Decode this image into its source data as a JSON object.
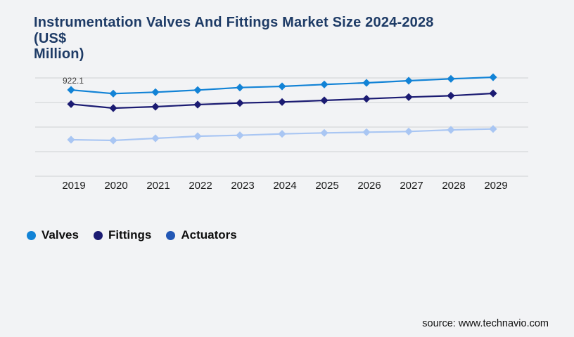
{
  "page": {
    "background_color": "#f2f3f5"
  },
  "title": {
    "line1": "Instrumentation Valves And Fittings Market Size 2024-2028",
    "line2": "(US$",
    "line3": "Million)",
    "color": "#1e3b66"
  },
  "legend": {
    "items": [
      {
        "label": "Valves",
        "dot_color": "#1283d6"
      },
      {
        "label": "Fittings",
        "dot_color": "#1b1b72"
      },
      {
        "label": "Actuators",
        "dot_color": "#2257b5"
      }
    ]
  },
  "source": {
    "label": "source: www.technavio.com"
  },
  "chart_data": {
    "type": "line",
    "title": "Instrumentation Valves And Fittings Market Size 2024-2028 (US$ Million)",
    "xlabel": "",
    "ylabel": "US$ Million",
    "x": [
      2019,
      2020,
      2021,
      2022,
      2023,
      2024,
      2025,
      2026,
      2027,
      2028,
      2029
    ],
    "series": [
      {
        "name": "Valves",
        "color": "#1283d6",
        "marker": "diamond",
        "values": [
          922.1,
          882.8,
          897.8,
          920.3,
          947.3,
          960.0,
          980.3,
          997.5,
          1020.0,
          1040.3,
          1057.5
        ]
      },
      {
        "name": "Fittings",
        "color": "#1b1b72",
        "marker": "diamond",
        "values": [
          770.3,
          727.5,
          742.5,
          765.0,
          782.3,
          792.8,
          810.0,
          827.3,
          845.3,
          860.3,
          885.0
        ]
      },
      {
        "name": "Actuators",
        "color": "#a9c6f3",
        "marker": "diamond",
        "values": [
          390.0,
          382.5,
          405.0,
          427.5,
          437.3,
          452.3,
          462.8,
          470.3,
          477.8,
          495.0,
          504.8
        ]
      }
    ],
    "data_labels": [
      {
        "series": "Valves",
        "x": 2019,
        "text": "922.1"
      }
    ],
    "ylim": [
      0,
      1050
    ],
    "gridline_count": 5,
    "gridline_color": "#cfd1d4",
    "grid": "horizontal-only",
    "y_axis_labels_visible": false,
    "legend_position": "bottom-left"
  }
}
